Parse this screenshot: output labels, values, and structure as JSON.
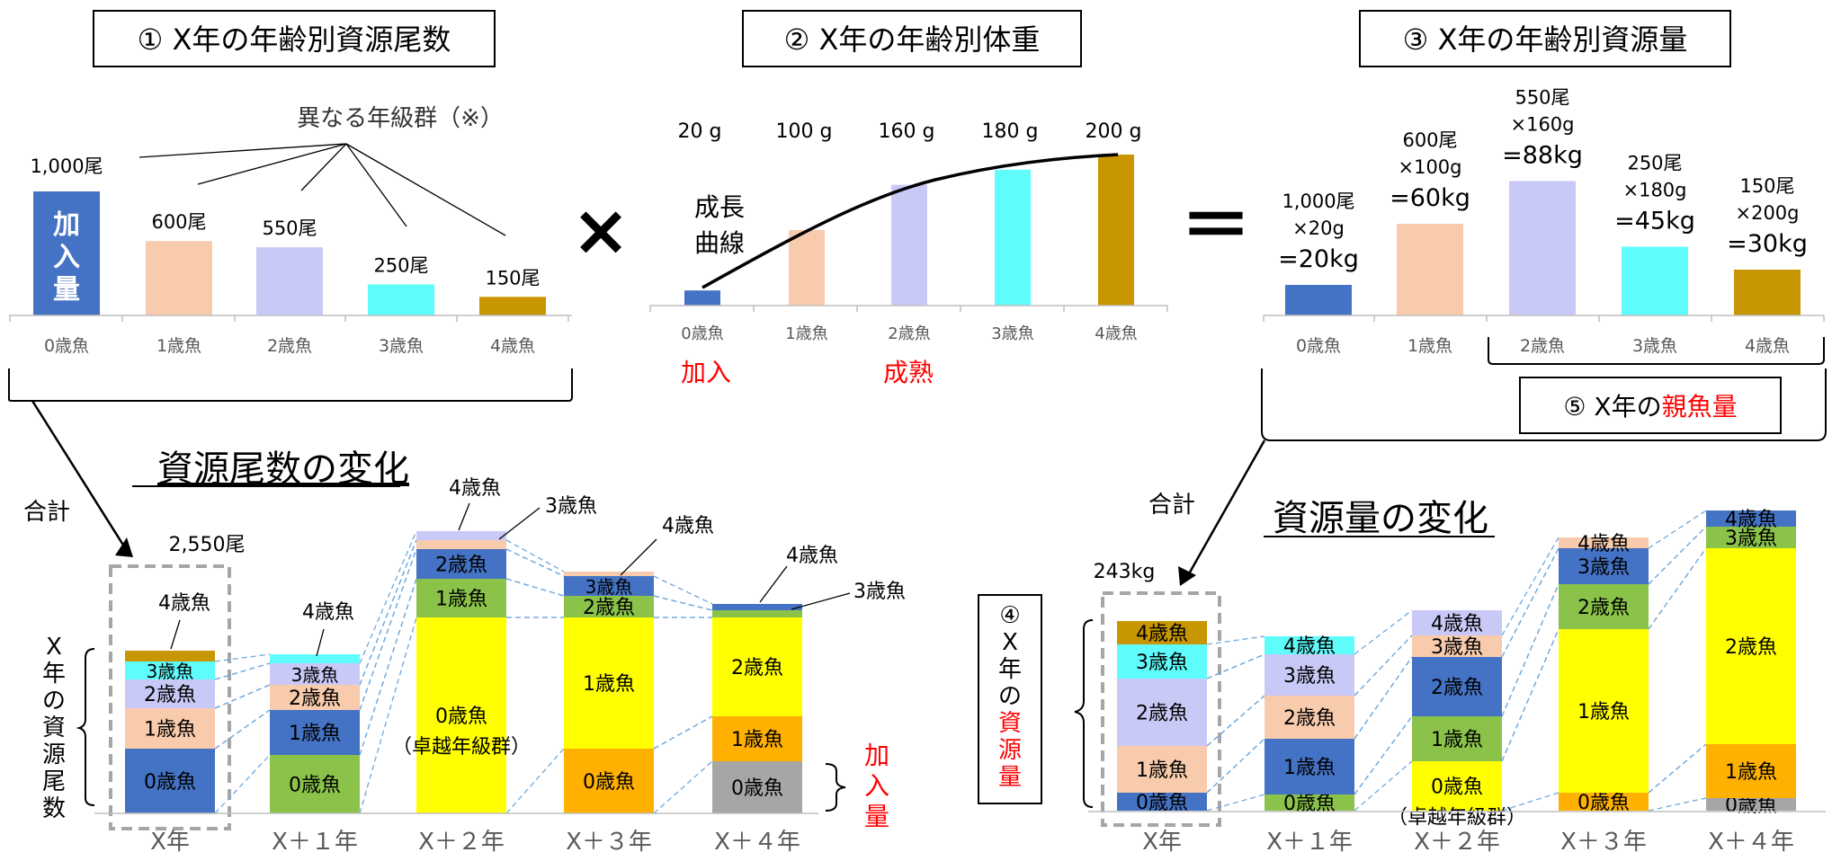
{
  "colors": {
    "age0": "#4472c4",
    "age1": "#f8cbad",
    "age2": "#c9c9f7",
    "age3": "#5ffcfc",
    "age4": "#c89600",
    "age1_gold": "#ffb000",
    "age0_yellow": "#ffff00",
    "green": "#8bc34a",
    "gray": "#a6a6a6",
    "red": "#ff0000",
    "dash_link": "#6fa8dc",
    "axis_text": "#595959"
  },
  "panel1": {
    "title": "① X年の年齢別資源尾数",
    "annotation": "異なる年級群（※）",
    "bars": [
      {
        "age": "0歳魚",
        "count": 1000,
        "label": "1,000尾",
        "inner": "加入量"
      },
      {
        "age": "1歳魚",
        "count": 600,
        "label": "600尾"
      },
      {
        "age": "2歳魚",
        "count": 550,
        "label": "550尾"
      },
      {
        "age": "3歳魚",
        "count": 250,
        "label": "250尾"
      },
      {
        "age": "4歳魚",
        "count": 150,
        "label": "150尾"
      }
    ]
  },
  "operator_times": "×",
  "panel2": {
    "title": "② X年の年齢別体重",
    "curve_label_1": "成長",
    "curve_label_2": "曲線",
    "recruit_label": "加入",
    "mature_label": "成熟",
    "bars": [
      {
        "age": "0歳魚",
        "weight": 20,
        "label": "20 g"
      },
      {
        "age": "1歳魚",
        "weight": 100,
        "label": "100 g"
      },
      {
        "age": "2歳魚",
        "weight": 160,
        "label": "160 g"
      },
      {
        "age": "3歳魚",
        "weight": 180,
        "label": "180 g"
      },
      {
        "age": "4歳魚",
        "weight": 200,
        "label": "200 g"
      }
    ]
  },
  "operator_equals": "＝",
  "panel3": {
    "title": "③ X年の年齢別資源量",
    "spawner_prefix": "⑤ X年の",
    "spawner_highlight": "親魚量",
    "bars": [
      {
        "age": "0歳魚",
        "biomass": 20,
        "l1": "1,000尾",
        "l2": "×20g",
        "l3": "=20kg"
      },
      {
        "age": "1歳魚",
        "biomass": 60,
        "l1": "600尾",
        "l2": "×100g",
        "l3": "=60kg"
      },
      {
        "age": "2歳魚",
        "biomass": 88,
        "l1": "550尾",
        "l2": "×160g",
        "l3": "=88kg"
      },
      {
        "age": "3歳魚",
        "biomass": 45,
        "l1": "250尾",
        "l2": "×180g",
        "l3": "=45kg"
      },
      {
        "age": "4歳魚",
        "biomass": 30,
        "l1": "150尾",
        "l2": "×200g",
        "l3": "=30kg"
      }
    ]
  },
  "bottom_left": {
    "title": "資源尾数の変化",
    "total_label": "合計",
    "total_value": "2,550尾",
    "side_label": [
      "X",
      "年",
      "の",
      "資",
      "源",
      "尾",
      "数"
    ],
    "recruit_side": [
      "加",
      "入",
      "量"
    ],
    "years": [
      "X年",
      "X＋１年",
      "X＋２年",
      "X＋３年",
      "X＋４年"
    ],
    "segment_labels": {
      "age0": "0歳魚",
      "age1": "1歳魚",
      "age2": "2歳魚",
      "age3": "3歳魚",
      "age4": "4歳魚",
      "strong": "（卓越年級群）"
    },
    "callouts": [
      "4歳魚",
      "4歳魚",
      "4歳魚",
      "3歳魚",
      "4歳魚",
      "4歳魚",
      "3歳魚"
    ]
  },
  "bottom_right": {
    "title": "資源量の変化",
    "total_label": "合計",
    "total_value": "243kg",
    "box_label": [
      "④",
      "X",
      "年",
      "の",
      "資",
      "源",
      "量"
    ],
    "years": [
      "X年",
      "X＋１年",
      "X＋２年",
      "X＋３年",
      "X＋４年"
    ],
    "segment_labels": {
      "age0": "0歳魚",
      "age1": "1歳魚",
      "age2": "2歳魚",
      "age3": "3歳魚",
      "age4": "4歳魚",
      "strong": "（卓越年級群）"
    }
  }
}
